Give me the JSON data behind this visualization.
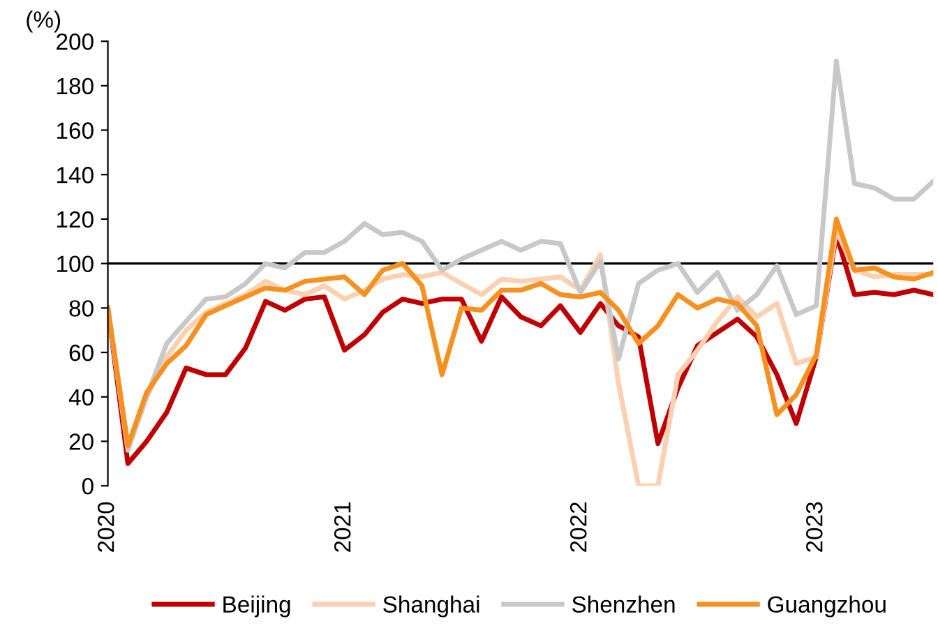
{
  "chart_data": {
    "type": "line",
    "ylabel": "(%)",
    "x": [
      "2020-01",
      "2020-02",
      "2020-03",
      "2020-04",
      "2020-05",
      "2020-06",
      "2020-07",
      "2020-08",
      "2020-09",
      "2020-10",
      "2020-11",
      "2020-12",
      "2021-01",
      "2021-02",
      "2021-03",
      "2021-04",
      "2021-05",
      "2021-06",
      "2021-07",
      "2021-08",
      "2021-09",
      "2021-10",
      "2021-11",
      "2021-12",
      "2022-01",
      "2022-02",
      "2022-03",
      "2022-04",
      "2022-05",
      "2022-06",
      "2022-07",
      "2022-08",
      "2022-09",
      "2022-10",
      "2022-11",
      "2022-12",
      "2023-01",
      "2023-02",
      "2023-03",
      "2023-04",
      "2023-05",
      "2023-06",
      "2023-07"
    ],
    "series": [
      {
        "name": "Beijing",
        "color": "#c00000",
        "values": [
          80,
          10,
          20,
          33,
          53,
          50,
          50,
          62,
          83,
          79,
          84,
          85,
          61,
          68,
          78,
          84,
          82,
          84,
          84,
          65,
          85,
          76,
          72,
          81,
          69,
          82,
          72,
          67,
          19,
          44,
          63,
          69,
          75,
          67,
          50,
          28,
          58,
          113,
          86,
          87,
          86,
          88,
          86
        ]
      },
      {
        "name": "Shanghai",
        "color": "#fcd0b0",
        "values": [
          80,
          17,
          40,
          58,
          70,
          78,
          82,
          86,
          92,
          88,
          86,
          90,
          84,
          88,
          93,
          95,
          94,
          96,
          91,
          86,
          93,
          92,
          93,
          94,
          88,
          104,
          46,
          0,
          0,
          50,
          61,
          74,
          85,
          76,
          82,
          55,
          58,
          115,
          97,
          94,
          95,
          95,
          95
        ]
      },
      {
        "name": "Shenzhen",
        "color": "#c8c8c8",
        "values": [
          80,
          16,
          40,
          64,
          74,
          84,
          85,
          91,
          100,
          98,
          105,
          105,
          110,
          118,
          113,
          114,
          110,
          97,
          102,
          106,
          110,
          106,
          110,
          109,
          87,
          101,
          57,
          91,
          97,
          100,
          87,
          96,
          79,
          86,
          99,
          77,
          81,
          191,
          136,
          134,
          129,
          129,
          137
        ]
      },
      {
        "name": "Guangzhou",
        "color": "#f7901e",
        "values": [
          80,
          18,
          42,
          55,
          63,
          77,
          81,
          85,
          89,
          88,
          92,
          93,
          94,
          86,
          97,
          100,
          90,
          50,
          80,
          79,
          88,
          88,
          91,
          86,
          85,
          87,
          79,
          64,
          72,
          86,
          80,
          84,
          82,
          72,
          32,
          41,
          59,
          120,
          97,
          98,
          94,
          93,
          96
        ]
      }
    ],
    "xlim": [
      "2020-01",
      "2023-07"
    ],
    "xticks": [
      {
        "value": "2020-01",
        "label": "2020"
      },
      {
        "value": "2021-01",
        "label": "2021"
      },
      {
        "value": "2022-01",
        "label": "2022"
      },
      {
        "value": "2023-01",
        "label": "2023"
      }
    ],
    "ylim": [
      0,
      200
    ],
    "yticks": [
      0,
      20,
      40,
      60,
      80,
      100,
      120,
      140,
      160,
      180,
      200
    ],
    "ref_lines": [
      {
        "axis": "y",
        "value": 100,
        "color": "#000000"
      }
    ],
    "legend": "bottom",
    "grid": false,
    "line_style": "solid",
    "marker": "none"
  }
}
